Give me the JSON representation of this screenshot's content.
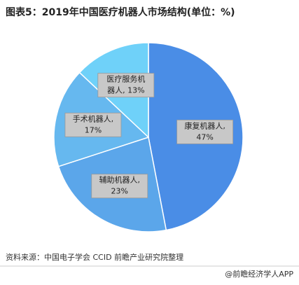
{
  "chart_data": {
    "type": "pie",
    "title": "图表5：2019年中国医疗机器人市场结构(单位：%)",
    "categories": [
      "康复机器人",
      "辅助机器人",
      "手术机器人",
      "医疗服务机器人"
    ],
    "values": [
      47,
      23,
      17,
      13
    ],
    "value_labels": [
      [
        "康复机器人,",
        "47%"
      ],
      [
        "辅助机器人,",
        "23%"
      ],
      [
        "手术机器人,",
        "17%"
      ],
      [
        "医疗服务机",
        "器人, 13%"
      ]
    ],
    "colors": [
      "#4a8de6",
      "#5ba6ea",
      "#66b8ef",
      "#6fd1f9"
    ],
    "source": "资料来源：中国电子学会 CCID 前瞻产业研究院整理",
    "footer": "@前瞻经济学人APP"
  }
}
